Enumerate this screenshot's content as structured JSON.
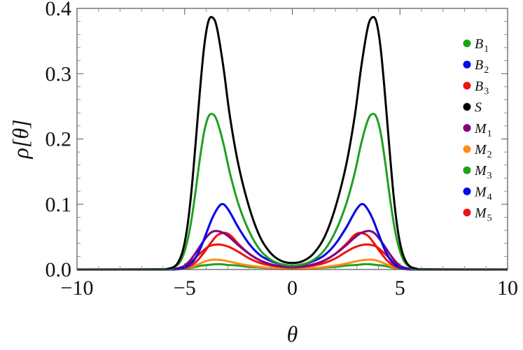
{
  "chart_data": {
    "type": "line",
    "xlabel": "θ",
    "ylabel": "ρ[θ]",
    "xlim": [
      -10,
      10
    ],
    "ylim": [
      0,
      0.4
    ],
    "x_ticks": [
      -10,
      -5,
      0,
      5,
      10
    ],
    "x_tick_labels": [
      "−10",
      "−5",
      "0",
      "5",
      "10"
    ],
    "y_ticks": [
      0.0,
      0.1,
      0.2,
      0.3,
      0.4
    ],
    "y_tick_labels": [
      "0.0",
      "0.1",
      "0.2",
      "0.3",
      "0.4"
    ],
    "grid": false,
    "legend_position": "right",
    "symmetric_about_zero": true,
    "series": [
      {
        "name": "B1",
        "label_main": "B",
        "label_sub": "1",
        "color": "#1fa01f",
        "x": [
          0,
          0.5,
          1,
          1.5,
          2,
          2.5,
          3,
          3.3,
          3.6,
          3.9,
          4.2,
          4.5,
          4.8,
          5.1,
          5.5,
          6,
          10
        ],
        "y": [
          0.001,
          0.001,
          0.002,
          0.003,
          0.004,
          0.006,
          0.007,
          0.008,
          0.008,
          0.007,
          0.006,
          0.004,
          0.002,
          0.001,
          0.0003,
          0,
          0
        ]
      },
      {
        "name": "B2",
        "label_main": "B",
        "label_sub": "2",
        "color": "#0a0aee",
        "x": [
          0,
          0.5,
          1,
          1.5,
          2,
          2.5,
          2.8,
          3.0,
          3.2,
          3.4,
          3.7,
          4.0,
          4.3,
          4.6,
          5.0,
          5.4,
          6,
          10
        ],
        "y": [
          0.006,
          0.008,
          0.013,
          0.022,
          0.039,
          0.064,
          0.082,
          0.093,
          0.1,
          0.097,
          0.08,
          0.055,
          0.03,
          0.013,
          0.003,
          0.0005,
          0,
          0
        ]
      },
      {
        "name": "B3",
        "label_main": "B",
        "label_sub": "3",
        "color": "#ee1111",
        "x": [
          0,
          0.5,
          1,
          1.5,
          2,
          2.5,
          2.9,
          3.3,
          3.6,
          3.9,
          4.2,
          4.5,
          4.8,
          5.2,
          5.6,
          6,
          10
        ],
        "y": [
          0.003,
          0.004,
          0.006,
          0.01,
          0.017,
          0.027,
          0.034,
          0.038,
          0.038,
          0.035,
          0.027,
          0.018,
          0.009,
          0.003,
          0.0006,
          0,
          0
        ]
      },
      {
        "name": "S",
        "label_main": "S",
        "label_sub": "",
        "color": "#000000",
        "x": [
          0,
          0.5,
          1,
          1.5,
          2,
          2.5,
          2.9,
          3.2,
          3.5,
          3.7,
          3.9,
          4.1,
          4.3,
          4.5,
          4.7,
          4.9,
          5.1,
          5.3,
          5.5,
          5.8,
          6.2,
          10
        ],
        "y": [
          0.01,
          0.013,
          0.025,
          0.05,
          0.095,
          0.16,
          0.235,
          0.31,
          0.37,
          0.386,
          0.38,
          0.34,
          0.27,
          0.19,
          0.115,
          0.06,
          0.027,
          0.011,
          0.004,
          0.001,
          0,
          0
        ]
      },
      {
        "name": "M1",
        "label_main": "M",
        "label_sub": "1",
        "color": "#800080",
        "x": [
          0,
          0.5,
          1,
          1.5,
          2,
          2.5,
          2.9,
          3.2,
          3.5,
          3.7,
          3.9,
          4.2,
          4.5,
          4.8,
          5.1,
          5.5,
          6,
          10
        ],
        "y": [
          0.004,
          0.005,
          0.008,
          0.014,
          0.024,
          0.037,
          0.049,
          0.056,
          0.059,
          0.058,
          0.053,
          0.04,
          0.025,
          0.012,
          0.004,
          0.0006,
          0,
          0
        ]
      },
      {
        "name": "M2",
        "label_main": "M",
        "label_sub": "2",
        "color": "#ff8c1a",
        "x": [
          0,
          0.5,
          1,
          1.5,
          2,
          2.5,
          2.9,
          3.2,
          3.5,
          3.7,
          4.0,
          4.3,
          4.6,
          4.9,
          5.3,
          5.7,
          10
        ],
        "y": [
          0.001,
          0.001,
          0.002,
          0.004,
          0.006,
          0.009,
          0.012,
          0.014,
          0.015,
          0.015,
          0.013,
          0.009,
          0.005,
          0.002,
          0.0005,
          0,
          0
        ]
      },
      {
        "name": "M3",
        "label_main": "M",
        "label_sub": "3",
        "color": "#1fa01f",
        "x": [
          0,
          0.5,
          1,
          1.5,
          2,
          2.5,
          2.9,
          3.2,
          3.5,
          3.7,
          3.9,
          4.1,
          4.3,
          4.5,
          4.7,
          4.9,
          5.1,
          5.3,
          5.6,
          6,
          10
        ],
        "y": [
          0.006,
          0.008,
          0.015,
          0.03,
          0.058,
          0.1,
          0.148,
          0.193,
          0.228,
          0.238,
          0.234,
          0.21,
          0.168,
          0.118,
          0.073,
          0.04,
          0.019,
          0.008,
          0.002,
          0.0005,
          0
        ]
      },
      {
        "name": "M4",
        "label_main": "M",
        "label_sub": "4",
        "color": "#0a0aee",
        "x": [
          0,
          0.5,
          1,
          1.5,
          2,
          2.5,
          2.8,
          3.0,
          3.2,
          3.4,
          3.7,
          4.0,
          4.3,
          4.6,
          5.0,
          5.4,
          6,
          10
        ],
        "y": [
          0.006,
          0.008,
          0.013,
          0.022,
          0.039,
          0.064,
          0.082,
          0.093,
          0.1,
          0.097,
          0.08,
          0.055,
          0.03,
          0.013,
          0.003,
          0.0005,
          0,
          0
        ]
      },
      {
        "name": "M5",
        "label_main": "M",
        "label_sub": "5",
        "color": "#ee1111",
        "x": [
          0,
          0.5,
          1,
          1.5,
          2,
          2.5,
          2.8,
          3.0,
          3.2,
          3.5,
          3.8,
          4.1,
          4.4,
          4.7,
          5.0,
          5.4,
          6,
          10
        ],
        "y": [
          0.004,
          0.005,
          0.008,
          0.014,
          0.024,
          0.039,
          0.05,
          0.055,
          0.056,
          0.052,
          0.04,
          0.026,
          0.014,
          0.006,
          0.002,
          0.0003,
          0,
          0
        ]
      }
    ]
  }
}
